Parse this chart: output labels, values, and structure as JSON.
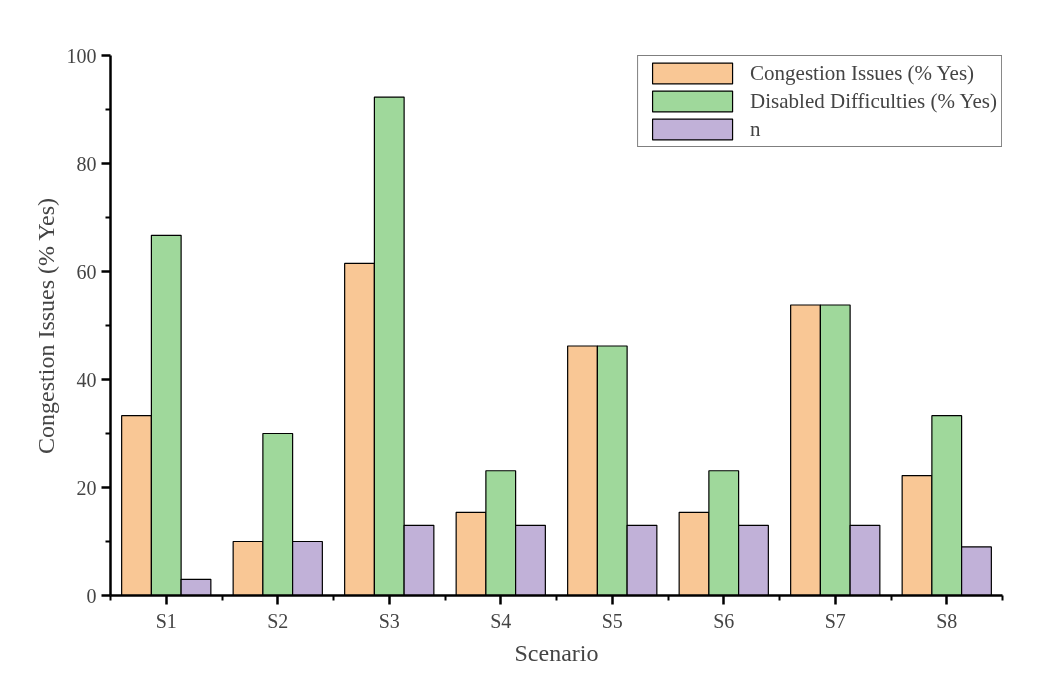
{
  "chart_data": {
    "type": "bar",
    "xlabel": "Scenario",
    "ylabel": "Congestion Issues (% Yes)",
    "categories": [
      "S1",
      "S2",
      "S3",
      "S4",
      "S5",
      "S6",
      "S7",
      "S8"
    ],
    "series": [
      {
        "name": "Congestion Issues (% Yes)",
        "color": "#f9c795",
        "values": [
          33.3,
          10,
          61.5,
          15.4,
          46.2,
          15.4,
          53.8,
          22.2
        ]
      },
      {
        "name": "Disabled Difficulties (% Yes)",
        "color": "#9fd89b",
        "values": [
          66.7,
          30,
          92.3,
          23.1,
          46.2,
          23.1,
          53.8,
          33.3
        ]
      },
      {
        "name": "n",
        "color": "#c1b1d8",
        "values": [
          3,
          10,
          13,
          13,
          13,
          13,
          13,
          9
        ]
      }
    ],
    "ylim": [
      0,
      100
    ],
    "yticks": [
      0,
      20,
      40,
      60,
      80,
      100
    ],
    "grid": false,
    "legend": "top right"
  }
}
